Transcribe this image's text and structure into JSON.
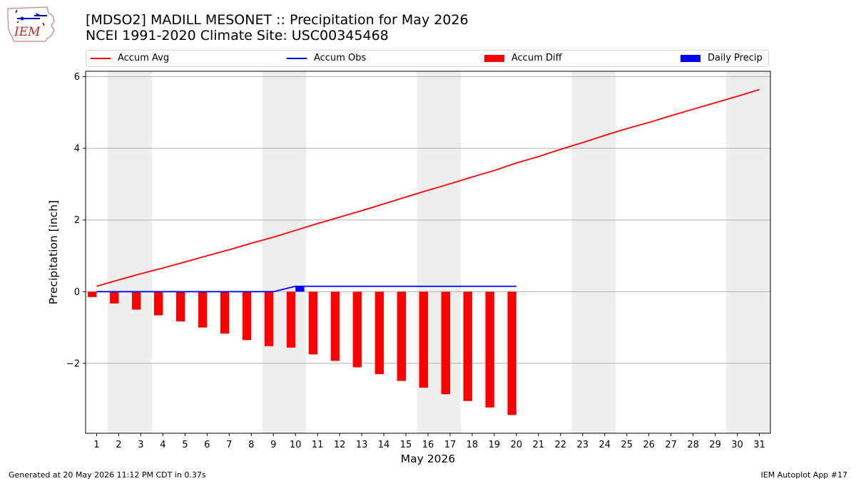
{
  "header": {
    "title_line1": "[MDSO2] MADILL MESONET :: Precipitation for May 2026",
    "title_line2": "NCEI 1991-2020 Climate Site: USC00345468",
    "logo_text": "IEM"
  },
  "footer": {
    "generated": "Generated at 20 May 2026 11:12 PM CDT in 0.37s",
    "app": "IEM Autoplot App #17"
  },
  "chart_data": {
    "type": "bar",
    "xlabel": "May 2026",
    "ylabel": "Precipitation [inch]",
    "xlim": [
      0.5,
      31.5
    ],
    "ylim": [
      -3.95,
      6.15
    ],
    "yticks": [
      -2,
      0,
      2,
      4,
      6
    ],
    "ytick_labels": [
      "−2",
      "0",
      "2",
      "4",
      "6"
    ],
    "xticks": [
      1,
      2,
      3,
      4,
      5,
      6,
      7,
      8,
      9,
      10,
      11,
      12,
      13,
      14,
      15,
      16,
      17,
      18,
      19,
      20,
      21,
      22,
      23,
      24,
      25,
      26,
      27,
      28,
      29,
      30,
      31
    ],
    "grid": "horizontal",
    "legend_position": "top",
    "weekend_shading": [
      [
        1.5,
        3.5
      ],
      [
        8.5,
        10.5
      ],
      [
        15.5,
        17.5
      ],
      [
        22.5,
        24.5
      ],
      [
        29.5,
        31.5
      ]
    ],
    "series": [
      {
        "name": "Accum Avg",
        "kind": "line",
        "color": "#ff0000",
        "x": [
          1,
          2,
          3,
          4,
          5,
          6,
          7,
          8,
          9,
          10,
          11,
          12,
          13,
          14,
          15,
          16,
          17,
          18,
          19,
          20,
          21,
          22,
          23,
          24,
          25,
          26,
          27,
          28,
          29,
          30,
          31
        ],
        "values": [
          0.15,
          0.33,
          0.5,
          0.66,
          0.83,
          1.0,
          1.17,
          1.35,
          1.52,
          1.71,
          1.9,
          2.08,
          2.26,
          2.45,
          2.64,
          2.83,
          3.01,
          3.2,
          3.38,
          3.59,
          3.77,
          3.97,
          4.16,
          4.36,
          4.55,
          4.72,
          4.91,
          5.09,
          5.27,
          5.45,
          5.64
        ]
      },
      {
        "name": "Accum Obs",
        "kind": "line",
        "color": "#0000ff",
        "x": [
          1,
          2,
          3,
          4,
          5,
          6,
          7,
          8,
          9,
          10,
          11,
          12,
          13,
          14,
          15,
          16,
          17,
          18,
          19,
          20
        ],
        "values": [
          0,
          0,
          0,
          0,
          0,
          0,
          0,
          0,
          0,
          0.15,
          0.15,
          0.15,
          0.15,
          0.15,
          0.15,
          0.15,
          0.15,
          0.15,
          0.15,
          0.15
        ]
      },
      {
        "name": "Accum Diff",
        "kind": "bar",
        "color": "#ff0000",
        "offset": -0.2,
        "x": [
          1,
          2,
          3,
          4,
          5,
          6,
          7,
          8,
          9,
          10,
          11,
          12,
          13,
          14,
          15,
          16,
          17,
          18,
          19,
          20
        ],
        "values": [
          -0.15,
          -0.33,
          -0.5,
          -0.66,
          -0.83,
          -1.0,
          -1.17,
          -1.35,
          -1.52,
          -1.56,
          -1.75,
          -1.93,
          -2.11,
          -2.3,
          -2.49,
          -2.68,
          -2.86,
          -3.05,
          -3.23,
          -3.44
        ]
      },
      {
        "name": "Daily Precip",
        "kind": "bar",
        "color": "#0000ff",
        "offset": 0.2,
        "x": [
          10
        ],
        "values": [
          0.15
        ]
      }
    ]
  }
}
